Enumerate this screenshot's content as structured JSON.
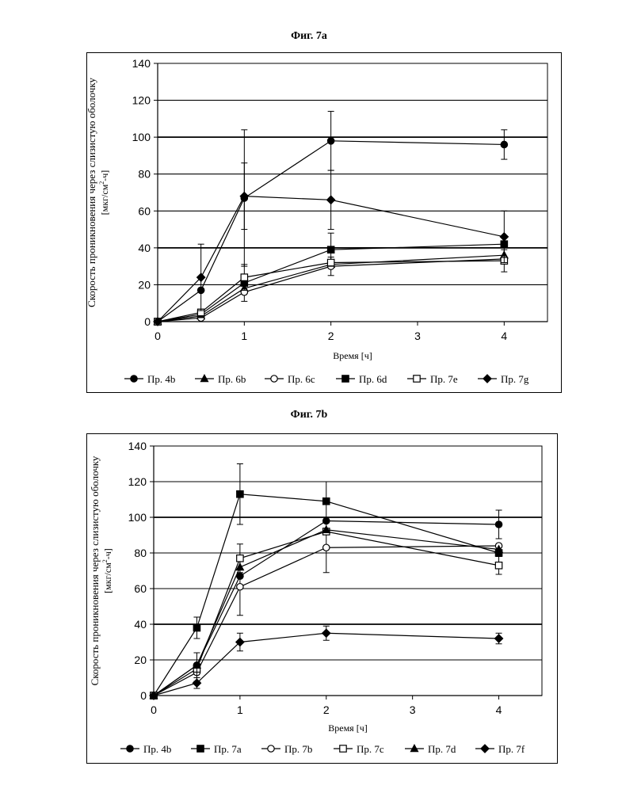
{
  "figures": [
    {
      "title": "Фиг. 7a",
      "chart_data": {
        "type": "line",
        "xlabel": "Время [ч]",
        "ylabel_line1": "Скорость проникновения через слизистую оболочку",
        "ylabel_line2_pre": "[мкг/см",
        "ylabel_sup": "2",
        "ylabel_line2_post": "-ч]",
        "xlim": [
          0,
          4.5
        ],
        "ylim": [
          0,
          140
        ],
        "xticks": [
          0,
          1,
          2,
          3,
          4
        ],
        "yticks": [
          0,
          20,
          40,
          60,
          80,
          100,
          120,
          140
        ],
        "grid": "horizontal",
        "legend_position": "bottom",
        "series": [
          {
            "name": "Пр. 4b",
            "marker": "circle-filled",
            "x": [
              0,
              0.5,
              1,
              2,
              4
            ],
            "y": [
              0,
              17,
              67,
              98,
              96
            ],
            "err": [
              0,
              0,
              37,
              16,
              8
            ]
          },
          {
            "name": "Пр. 6b",
            "marker": "triangle-filled",
            "x": [
              0,
              0.5,
              1,
              2,
              4
            ],
            "y": [
              0,
              3,
              18,
              31,
              36
            ],
            "err": [
              0,
              0,
              0,
              0,
              0
            ]
          },
          {
            "name": "Пр. 6c",
            "marker": "circle-open",
            "x": [
              0,
              0.5,
              1,
              2,
              4
            ],
            "y": [
              0,
              2,
              16,
              30,
              34
            ],
            "err": [
              0,
              0,
              5,
              5,
              0
            ]
          },
          {
            "name": "Пр. 6d",
            "marker": "square-filled",
            "x": [
              0,
              0.5,
              1,
              2,
              4
            ],
            "y": [
              0,
              4,
              21,
              39,
              42
            ],
            "err": [
              0,
              0,
              0,
              9,
              0
            ]
          },
          {
            "name": "Пр. 7e",
            "marker": "square-open",
            "x": [
              0,
              0.5,
              1,
              2,
              4
            ],
            "y": [
              0,
              5,
              24,
              32,
              33
            ],
            "err": [
              0,
              0,
              7,
              0,
              6
            ]
          },
          {
            "name": "Пр. 7g",
            "marker": "diamond-filled",
            "x": [
              0,
              0.5,
              1,
              2,
              4
            ],
            "y": [
              0,
              24,
              68,
              66,
              46
            ],
            "err": [
              0,
              18,
              18,
              16,
              14
            ]
          }
        ]
      }
    },
    {
      "title": "Фиг. 7b",
      "chart_data": {
        "type": "line",
        "xlabel": "Время [ч]",
        "ylabel_line1": "Скорость проникновения через слизистую оболочку",
        "ylabel_line2_pre": "[мкг/см",
        "ylabel_sup": "2",
        "ylabel_line2_post": "-ч]",
        "xlim": [
          0,
          4.5
        ],
        "ylim": [
          0,
          140
        ],
        "xticks": [
          0,
          1,
          2,
          3,
          4
        ],
        "yticks": [
          0,
          20,
          40,
          60,
          80,
          100,
          120,
          140
        ],
        "grid": "horizontal",
        "legend_position": "bottom",
        "series": [
          {
            "name": "Пр. 4b",
            "marker": "circle-filled",
            "x": [
              0,
              0.5,
              1,
              2,
              4
            ],
            "y": [
              0,
              17,
              67,
              98,
              96
            ],
            "err": [
              0,
              0,
              0,
              0,
              8
            ]
          },
          {
            "name": "Пр. 7a",
            "marker": "square-filled",
            "x": [
              0,
              0.5,
              1,
              2,
              4
            ],
            "y": [
              0,
              38,
              113,
              109,
              80
            ],
            "err": [
              0,
              6,
              17,
              11,
              0
            ]
          },
          {
            "name": "Пр. 7b",
            "marker": "circle-open",
            "x": [
              0,
              0.5,
              1,
              2,
              4
            ],
            "y": [
              0,
              13,
              61,
              83,
              84
            ],
            "err": [
              0,
              5,
              16,
              14,
              0
            ]
          },
          {
            "name": "Пр. 7c",
            "marker": "square-open",
            "x": [
              0,
              0.5,
              1,
              2,
              4
            ],
            "y": [
              0,
              15,
              77,
              92,
              73
            ],
            "err": [
              0,
              0,
              8,
              0,
              5
            ]
          },
          {
            "name": "Пр. 7d",
            "marker": "triangle-filled",
            "x": [
              0,
              0.5,
              1,
              2,
              4
            ],
            "y": [
              0,
              17,
              72,
              93,
              82
            ],
            "err": [
              0,
              7,
              0,
              0,
              0
            ]
          },
          {
            "name": "Пр. 7f",
            "marker": "diamond-filled",
            "x": [
              0,
              0.5,
              1,
              2,
              4
            ],
            "y": [
              0,
              7,
              30,
              35,
              32
            ],
            "err": [
              0,
              3,
              5,
              4,
              3
            ]
          }
        ]
      }
    }
  ]
}
